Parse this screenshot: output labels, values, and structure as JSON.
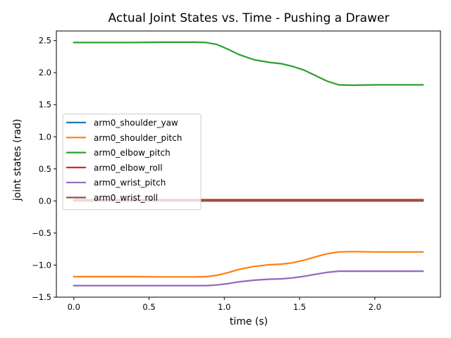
{
  "chart_data": {
    "type": "line",
    "title": "Actual Joint States vs. Time - Pushing a Drawer",
    "xlabel": "time (s)",
    "ylabel": "joint states (rad)",
    "xlim": [
      -0.116,
      2.436
    ],
    "ylim": [
      -1.5,
      2.65
    ],
    "xticks": [
      0.0,
      0.5,
      1.0,
      1.5,
      2.0
    ],
    "xtick_labels": [
      "0.0",
      "0.5",
      "1.0",
      "1.5",
      "2.0"
    ],
    "yticks": [
      -1.5,
      -1.0,
      -0.5,
      0.0,
      0.5,
      1.0,
      1.5,
      2.0,
      2.5
    ],
    "ytick_labels": [
      "−1.5",
      "−1.0",
      "−0.5",
      "0.0",
      "0.5",
      "1.0",
      "1.5",
      "2.0",
      "2.5"
    ],
    "grid": false,
    "legend": "center-left",
    "series": [
      {
        "name": "arm0_shoulder_yaw",
        "color": "#1f77b4",
        "x": [
          0.0,
          2.32
        ],
        "y": [
          0.01,
          0.01
        ]
      },
      {
        "name": "arm0_shoulder_pitch",
        "color": "#ff7f0e",
        "x": [
          0.0,
          0.2,
          0.4,
          0.6,
          0.8,
          0.88,
          0.95,
          1.02,
          1.1,
          1.2,
          1.3,
          1.38,
          1.45,
          1.53,
          1.6,
          1.68,
          1.76,
          1.85,
          2.0,
          2.2,
          2.32
        ],
        "y": [
          -1.18,
          -1.18,
          -1.18,
          -1.185,
          -1.185,
          -1.18,
          -1.16,
          -1.12,
          -1.065,
          -1.02,
          -0.995,
          -0.985,
          -0.965,
          -0.925,
          -0.875,
          -0.825,
          -0.795,
          -0.79,
          -0.795,
          -0.795,
          -0.795
        ]
      },
      {
        "name": "arm0_elbow_pitch",
        "color": "#2ca02c",
        "x": [
          0.0,
          0.2,
          0.4,
          0.6,
          0.8,
          0.88,
          0.95,
          1.02,
          1.1,
          1.2,
          1.3,
          1.38,
          1.45,
          1.53,
          1.6,
          1.68,
          1.76,
          1.85,
          2.0,
          2.2,
          2.32
        ],
        "y": [
          2.47,
          2.47,
          2.47,
          2.475,
          2.475,
          2.47,
          2.44,
          2.37,
          2.28,
          2.2,
          2.16,
          2.14,
          2.1,
          2.04,
          1.96,
          1.87,
          1.81,
          1.805,
          1.81,
          1.81,
          1.81
        ]
      },
      {
        "name": "arm0_elbow_roll",
        "color": "#d62728",
        "x": [
          0.0,
          2.32
        ],
        "y": [
          0.02,
          0.02
        ]
      },
      {
        "name": "arm0_wrist_pitch",
        "color": "#9467bd",
        "x": [
          0.0,
          0.2,
          0.4,
          0.6,
          0.8,
          0.88,
          0.95,
          1.02,
          1.1,
          1.2,
          1.3,
          1.38,
          1.45,
          1.53,
          1.6,
          1.68,
          1.76,
          1.85,
          2.0,
          2.2,
          2.32
        ],
        "y": [
          -1.32,
          -1.32,
          -1.32,
          -1.32,
          -1.32,
          -1.32,
          -1.31,
          -1.29,
          -1.26,
          -1.235,
          -1.22,
          -1.215,
          -1.2,
          -1.175,
          -1.145,
          -1.115,
          -1.095,
          -1.095,
          -1.095,
          -1.095,
          -1.095
        ]
      },
      {
        "name": "arm0_wrist_roll",
        "color": "#8c564b",
        "x": [
          0.0,
          2.32
        ],
        "y": [
          0.0,
          0.0
        ]
      }
    ]
  }
}
